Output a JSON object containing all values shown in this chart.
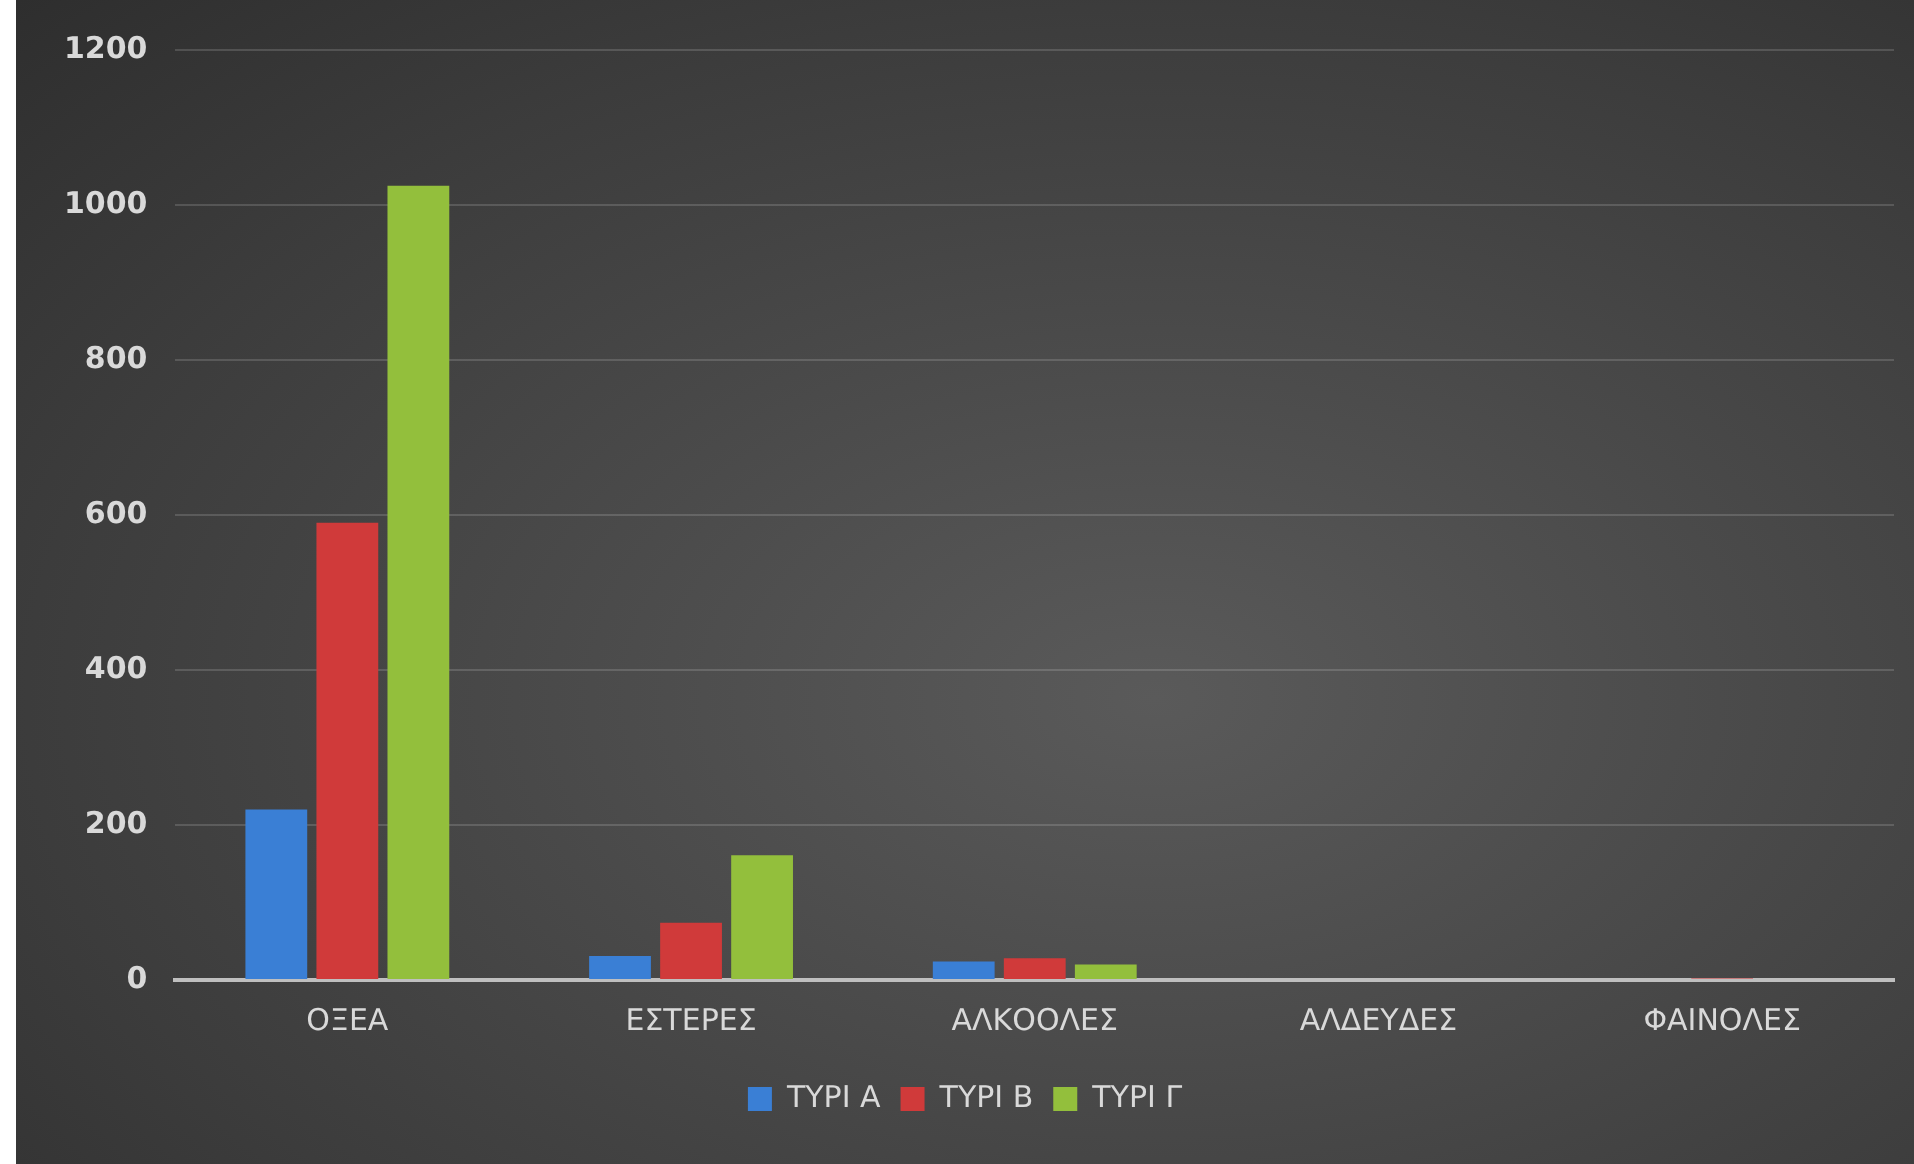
{
  "chart_data": {
    "type": "bar",
    "categories": [
      "ΟΞΕΑ",
      "ΕΣΤΕΡΕΣ",
      "ΑΛΚΟΟΛΕΣ",
      "ΑΛΔΕΥΔΕΣ",
      "ΦΑΙΝΟΛΕΣ"
    ],
    "series": [
      {
        "name": "ΤΥΡΙ Α",
        "color": "#3a7fd5",
        "values": [
          220,
          31,
          24,
          null,
          null
        ]
      },
      {
        "name": "ΤΥΡΙ Β",
        "color": "#d03a3a",
        "values": [
          590,
          74,
          28,
          null,
          2
        ]
      },
      {
        "name": "ΤΥΡΙ Γ",
        "color": "#93bf3c",
        "values": [
          1025,
          161,
          20,
          null,
          null
        ]
      }
    ],
    "ylim": [
      0,
      1200
    ],
    "yticks": [
      0,
      200,
      400,
      600,
      800,
      1000,
      1200
    ],
    "grid": "y",
    "legend": "bottom"
  }
}
